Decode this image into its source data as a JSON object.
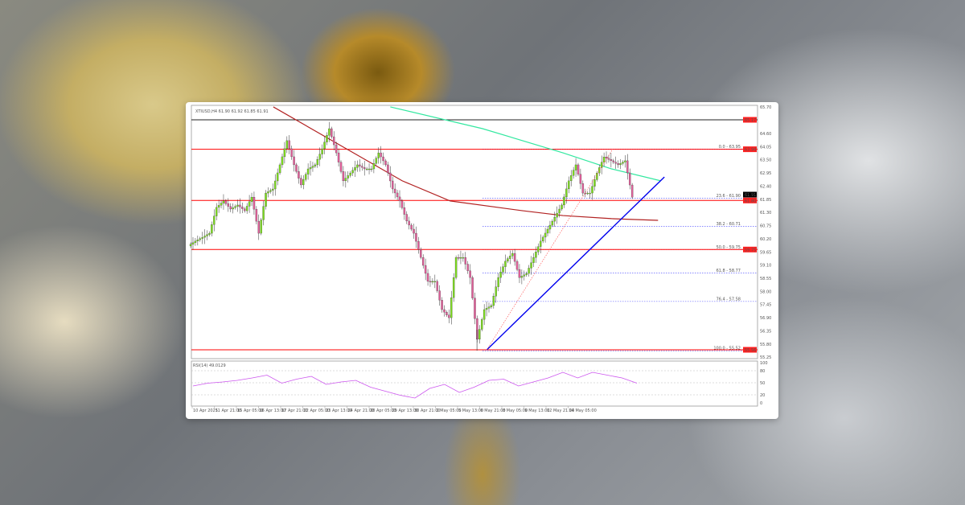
{
  "chart_data": {
    "type": "candlestick",
    "header": "XTIUSD,H4 61.90 61.92 61.85 61.91",
    "closes": [
      60.1,
      60.26,
      60.43,
      61.51,
      61.78,
      61.44,
      61.61,
      61.37,
      61.94,
      60.43,
      62.11,
      62.28,
      63.29,
      64.3,
      63.29,
      62.45,
      63.12,
      63.29,
      63.96,
      64.8,
      63.79,
      62.62,
      62.95,
      63.29,
      63.12,
      63.12,
      63.79,
      63.29,
      62.28,
      61.78,
      60.94,
      60.43,
      59.42,
      58.42,
      58.42,
      57.24,
      56.9,
      59.42,
      59.42,
      58.58,
      56.0,
      57.24,
      57.41,
      58.58,
      59.26,
      59.59,
      58.58,
      58.75,
      59.42,
      60.1,
      60.6,
      61.1,
      61.61,
      62.62,
      63.29,
      62.11,
      62.11,
      62.95,
      63.62,
      63.46,
      63.29,
      63.46,
      61.94
    ],
    "x_tick_labels": [
      "10 Apr 2025",
      "11 Apr 21:00",
      "15 Apr 05:00",
      "16 Apr 13:00",
      "17 Apr 21:00",
      "22 Apr 05:00",
      "23 Apr 13:00",
      "24 Apr 21:00",
      "28 Apr 05:00",
      "29 Apr 13:00",
      "30 Apr 21:00",
      "2 May 05:00",
      "5 May 13:00",
      "6 May 21:00",
      "8 May 05:00",
      "9 May 13:00",
      "12 May 21:00",
      "14 May 05:00"
    ],
    "ylim": [
      55.1,
      65.9
    ],
    "y_tick_labels": [
      "65.70",
      "64.60",
      "64.05",
      "63.50",
      "62.95",
      "62.40",
      "61.85",
      "61.30",
      "60.75",
      "60.20",
      "59.65",
      "59.10",
      "58.55",
      "58.00",
      "57.45",
      "56.90",
      "56.35",
      "55.80",
      "55.25"
    ],
    "horizontal_levels": [
      {
        "price": 65.17,
        "label": "65.17",
        "color": "#222222"
      },
      {
        "price": 63.94,
        "label": "63.94",
        "color": "#ff0000"
      },
      {
        "price": 61.8,
        "label": "61.80",
        "color": "#ff0000"
      },
      {
        "price": 59.75,
        "label": "59.75",
        "color": "#ff0000"
      },
      {
        "price": 55.56,
        "label": "55.56",
        "color": "#ff0000"
      }
    ],
    "current_price": {
      "label": "61.91",
      "price": 61.91
    },
    "fibonacci": [
      {
        "label": "0.0 - 63.95",
        "price": 63.95
      },
      {
        "label": "23.6 - 61.90",
        "price": 61.9
      },
      {
        "label": "38.2 - 60.71",
        "price": 60.71
      },
      {
        "label": "50.0 - 59.75",
        "price": 59.75
      },
      {
        "label": "61.8 - 58.77",
        "price": 58.77
      },
      {
        "label": "76.4 - 57.58",
        "price": 57.58
      },
      {
        "label": "100.0 - 55.52",
        "price": 55.52
      }
    ],
    "moving_averages": [
      {
        "color": "#b22222",
        "points": [
          [
            11.4,
            65.71
          ],
          [
            29.7,
            62.62
          ],
          [
            36.5,
            61.78
          ],
          [
            46.8,
            61.37
          ],
          [
            52.5,
            61.17
          ],
          [
            59.4,
            61.04
          ],
          [
            66,
            60.97
          ]
        ]
      },
      {
        "color": "#33e8a0",
        "points": [
          [
            28,
            65.71
          ],
          [
            41.1,
            64.8
          ],
          [
            52.5,
            63.79
          ],
          [
            59.4,
            63.12
          ],
          [
            66.4,
            62.62
          ]
        ]
      }
    ],
    "trendline": {
      "color": "#0000ee",
      "points": [
        [
          41.7,
          55.56
        ],
        [
          66.9,
          62.78
        ]
      ]
    },
    "fib_line": {
      "color": "#ff4444",
      "points": [
        [
          41.7,
          55.56
        ],
        [
          59.6,
          63.96
        ]
      ]
    },
    "colors": {
      "up": "#7ddc1f",
      "down": "#e0609a",
      "wick": "#333333"
    },
    "rsi": {
      "label": "RSI(14) 49.0129",
      "levels": [
        80,
        50,
        20
      ],
      "ylim": [
        0,
        100
      ],
      "tick_labels": [
        "100",
        "80",
        "50",
        "20",
        "0"
      ],
      "color": "#cc55ee",
      "values": [
        42,
        49,
        52,
        56,
        62,
        69,
        49,
        59,
        66,
        46,
        52,
        56,
        39,
        29,
        19,
        12,
        36,
        46,
        26,
        39,
        56,
        59,
        42,
        52,
        62,
        76,
        62,
        76,
        69,
        62,
        49
      ]
    }
  }
}
